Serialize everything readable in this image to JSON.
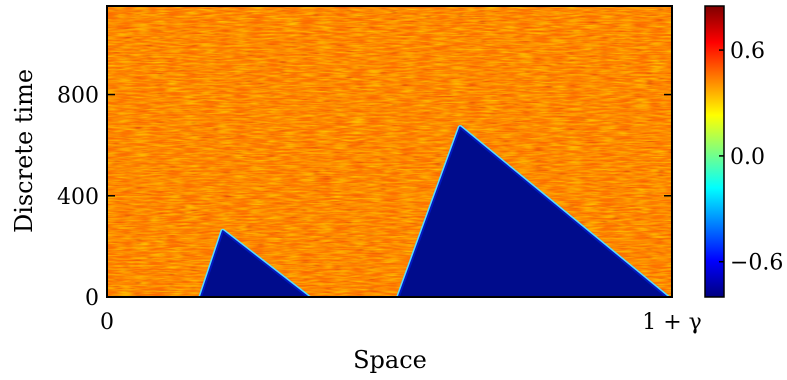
{
  "chart_data": {
    "type": "heatmap",
    "title": "",
    "xlabel": "Space",
    "ylabel": "Discrete time",
    "x_ticks": [
      "0",
      "1 + γ"
    ],
    "y_ticks": [
      "0",
      "400",
      "800"
    ],
    "xlim": [
      0,
      1.0
    ],
    "ylim": [
      0,
      1150
    ],
    "colormap": "jet",
    "colorbar": {
      "range": [
        -0.8,
        0.85
      ],
      "ticks": [
        "−0.6",
        "0.0",
        "0.6"
      ]
    },
    "background_state": {
      "description_value_mean": 0.55
    },
    "regions": [
      {
        "value": -0.8,
        "base_left_x": 0.165,
        "apex_x": 0.205,
        "apex_t": 260,
        "base_right_x": 0.36
      },
      {
        "value": -0.8,
        "base_left_x": 0.515,
        "apex_x": 0.625,
        "apex_t": 670,
        "base_right_x": 0.995
      }
    ]
  }
}
